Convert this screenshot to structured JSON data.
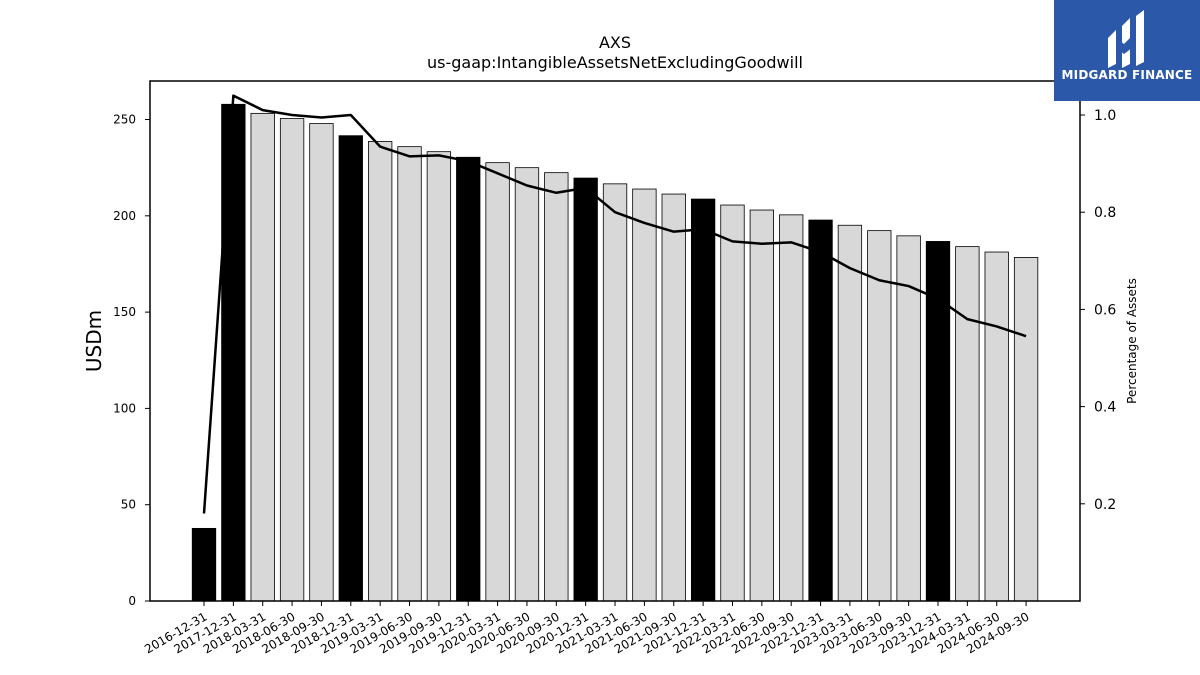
{
  "chart_data": {
    "type": "bar",
    "title": "AXS",
    "subtitle": "us-gaap:IntangibleAssetsNetExcludingGoodwill",
    "ylabel": "USDm",
    "y2label": "Percentage of Assets",
    "ylim": [
      0,
      270
    ],
    "y2lim": [
      0.0,
      1.07
    ],
    "yticks": [
      0,
      50,
      100,
      150,
      200,
      250
    ],
    "y2ticks": [
      0.2,
      0.4,
      0.6,
      0.8,
      1.0
    ],
    "categories": [
      "2016-12-31",
      "2017-12-31",
      "2018-03-31",
      "2018-06-30",
      "2018-09-30",
      "2018-12-31",
      "2019-03-31",
      "2019-06-30",
      "2019-09-30",
      "2019-12-31",
      "2020-03-31",
      "2020-06-30",
      "2020-09-30",
      "2020-12-31",
      "2021-03-31",
      "2021-06-30",
      "2021-09-30",
      "2021-12-31",
      "2022-03-31",
      "2022-06-30",
      "2022-09-30",
      "2022-12-31",
      "2023-03-31",
      "2023-06-30",
      "2023-09-30",
      "2023-12-31",
      "2024-03-31",
      "2024-06-30",
      "2024-09-30"
    ],
    "series": [
      {
        "values": [
          37.7,
          257.9,
          253.2,
          250.5,
          247.9,
          241.6,
          238.6,
          235.9,
          233.3,
          230.4,
          227.6,
          225.0,
          222.4,
          219.6,
          216.6,
          213.9,
          211.3,
          208.7,
          205.6,
          203.0,
          200.5,
          197.8,
          195.1,
          192.3,
          189.6,
          186.7,
          184.0,
          181.2,
          178.4
        ],
        "highlighted": [
          true,
          true,
          false,
          false,
          false,
          true,
          false,
          false,
          false,
          true,
          false,
          false,
          false,
          true,
          false,
          false,
          false,
          true,
          false,
          false,
          false,
          true,
          false,
          false,
          false,
          true,
          false,
          false,
          false
        ]
      },
      {
        "type": "line",
        "axis": "right",
        "values": [
          0.18,
          1.04,
          1.01,
          1.0,
          0.995,
          1.0,
          0.935,
          0.915,
          0.917,
          0.905,
          0.88,
          0.855,
          0.84,
          0.85,
          0.8,
          0.778,
          0.76,
          0.765,
          0.74,
          0.735,
          0.738,
          0.718,
          0.685,
          0.66,
          0.648,
          0.622,
          0.58,
          0.565,
          0.545
        ]
      }
    ],
    "colors": {
      "highlight": "#000000",
      "bar": "#d8d8d8",
      "edge": "#000000",
      "line": "#000000"
    },
    "grid": false
  },
  "logo": {
    "text": "MIDGARD FINANCE",
    "bg": "#2b58a8"
  }
}
